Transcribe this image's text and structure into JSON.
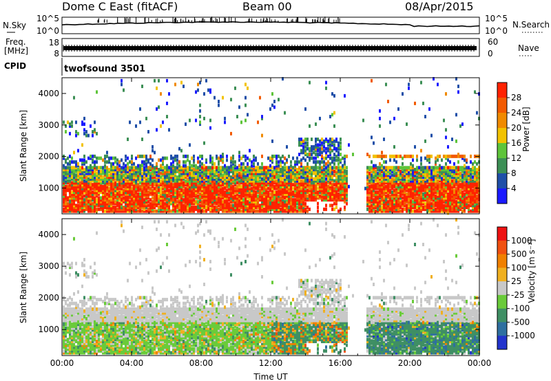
{
  "header": {
    "station": "Dome C East (fitACF)",
    "beam": "Beam 00",
    "date": "08/Apr/2015"
  },
  "status_panels": {
    "nsky_label": "N.Sky",
    "nsky_ticks": [
      "10^5",
      "10^0"
    ],
    "nsearch_label": "N.Search",
    "nsearch_ticks": [
      "10^5",
      "10^0"
    ],
    "freq_label": "Freq.",
    "freq_unit": "[MHz]",
    "freq_ticks": [
      "18",
      "8"
    ],
    "nave_label": "Nave",
    "nave_ticks": [
      "60",
      "0"
    ],
    "cpid_label": "CPID",
    "cpid_value": "twofsound 3501"
  },
  "colors": {
    "power_scale": [
      "#1a1aff",
      "#1f4fa8",
      "#3c8f55",
      "#5ec43a",
      "#f2c200",
      "#f08a00",
      "#f25a00",
      "#ff2200"
    ],
    "velocity_scale": [
      "#2233cc",
      "#2e6fa0",
      "#3f8f64",
      "#6acb3a",
      "#c8c8c8",
      "#f0b020",
      "#f08000",
      "#f05010",
      "#ee1111"
    ]
  },
  "chart_data": [
    {
      "type": "heatmap",
      "title": "Power",
      "ylabel": "Slant Range [km]",
      "ylim": [
        180,
        4500
      ],
      "y_ticks": [
        1000,
        2000,
        3000,
        4000
      ],
      "x_ticks": [
        "00:00",
        "04:00",
        "08:00",
        "12:00",
        "16:00",
        "20:00",
        "00:00"
      ],
      "colorbar_label": "Power [dB]",
      "colorbar_ticks": [
        4,
        8,
        12,
        16,
        20,
        24,
        28
      ],
      "colorbar_range": [
        0,
        32
      ],
      "dense_backscatter_range_km": [
        300,
        1700
      ],
      "data_gap_hours": [
        16.8,
        17.2
      ]
    },
    {
      "type": "heatmap",
      "title": "Velocity",
      "ylabel": "Slant Range [km]",
      "xlabel": "Time UT",
      "ylim": [
        180,
        4500
      ],
      "y_ticks": [
        1000,
        2000,
        3000,
        4000
      ],
      "x_ticks": [
        "00:00",
        "04:00",
        "08:00",
        "12:00",
        "16:00",
        "20:00",
        "00:00"
      ],
      "colorbar_label": "Velocity [m s⁻¹]",
      "colorbar_ticks": [
        "1000",
        "500",
        "100",
        "25",
        "-25",
        "-100",
        "-500",
        "-1000"
      ],
      "dense_backscatter_range_km": [
        300,
        1700
      ],
      "data_gap_hours": [
        16.8,
        17.2
      ]
    }
  ]
}
